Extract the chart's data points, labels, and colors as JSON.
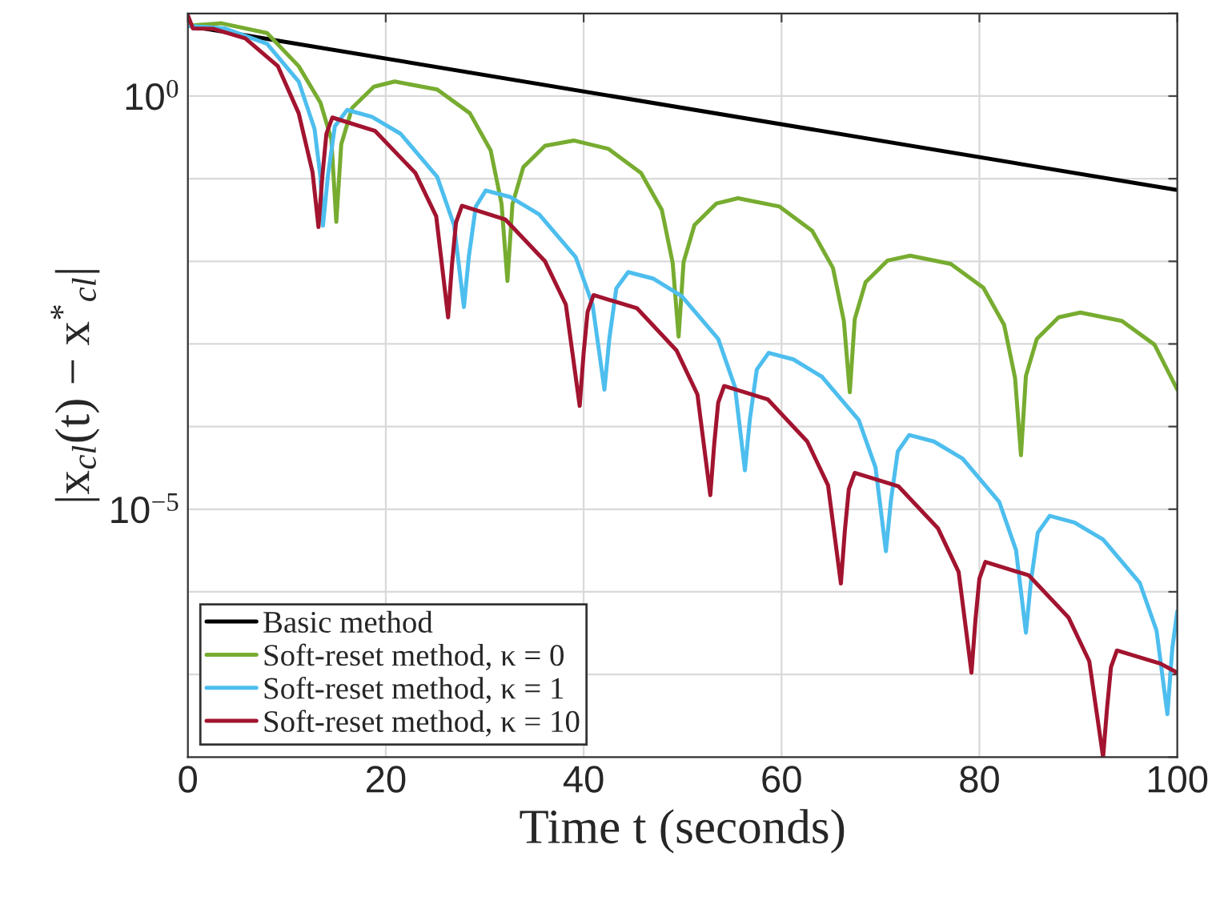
{
  "chart_data": {
    "type": "line",
    "xlabel": "Time t (seconds)",
    "ylabel": "|x$_{cl}$(t) − x$^{*}$$_{cl}$|",
    "xlim": [
      0,
      100
    ],
    "xticks": [
      0,
      20,
      40,
      60,
      80,
      100
    ],
    "ylim": [
      1e-08,
      10
    ],
    "log": true,
    "yticks": [
      {
        "value": 1e-08,
        "label": null
      },
      {
        "value": 1e-07,
        "label": null
      },
      {
        "value": 1e-06,
        "label": null
      },
      {
        "value": 1e-05,
        "label": "10$^{−5}$"
      },
      {
        "value": 0.0001,
        "label": null
      },
      {
        "value": 0.001,
        "label": null
      },
      {
        "value": 0.01,
        "label": null
      },
      {
        "value": 0.1,
        "label": null
      },
      {
        "value": 1,
        "label": "10$^{0}$"
      },
      {
        "value": 10,
        "label": null
      }
    ],
    "grid": true,
    "legend": "bottom left",
    "line_style": "solid",
    "marker": "none",
    "series": [
      {
        "name": "Basic method",
        "color": "#000000",
        "x": [
          0,
          100
        ],
        "values": [
          7.1,
          0.073
        ]
      },
      {
        "name": "Soft-reset method, κ = 0",
        "color": "#77ac30",
        "x": [
          0,
          3.4,
          8.0,
          11.2,
          13.4,
          14.5,
          15.0,
          15.5,
          16.6,
          18.8,
          20.9,
          25.2,
          28.5,
          30.6,
          31.7,
          32.3,
          32.8,
          33.9,
          36.1,
          39.0,
          42.5,
          45.8,
          47.9,
          49.0,
          49.6,
          50.1,
          51.2,
          53.4,
          55.6,
          59.8,
          63.1,
          65.2,
          66.3,
          66.9,
          67.4,
          68.5,
          70.7,
          73.0,
          77.1,
          80.4,
          82.5,
          83.6,
          84.2,
          84.7,
          85.8,
          88.0,
          90.2,
          94.4,
          97.7,
          100
        ],
        "values": [
          7.1,
          7.6,
          5.8,
          2.3,
          0.83,
          0.3,
          0.03,
          0.26,
          0.72,
          1.3,
          1.5,
          1.2,
          0.62,
          0.22,
          0.05,
          0.0058,
          0.049,
          0.138,
          0.25,
          0.29,
          0.23,
          0.117,
          0.042,
          0.0095,
          0.00123,
          0.0098,
          0.0275,
          0.05,
          0.058,
          0.046,
          0.0234,
          0.0083,
          0.0019,
          0.00026,
          0.002,
          0.0056,
          0.0102,
          0.0117,
          0.0093,
          0.0048,
          0.0017,
          0.00039,
          4.5e-05,
          0.00041,
          0.00115,
          0.0021,
          0.0024,
          0.0019,
          0.00098,
          0.00028
        ]
      },
      {
        "name": "Soft-reset method, κ = 1",
        "color": "#4dbeee",
        "x": [
          0,
          3.7,
          8.0,
          11.2,
          12.8,
          13.4,
          13.65,
          14.15,
          14.85,
          16.1,
          18.6,
          21.5,
          25.2,
          26.9,
          27.9,
          28.4,
          29.1,
          30.1,
          32.6,
          35.5,
          39.2,
          40.9,
          42.1,
          42.6,
          43.3,
          44.5,
          47.0,
          49.9,
          53.6,
          55.3,
          56.3,
          56.8,
          57.5,
          58.7,
          61.2,
          64.1,
          67.8,
          69.5,
          70.55,
          71.05,
          71.75,
          72.9,
          75.4,
          78.3,
          82.0,
          83.7,
          84.7,
          85.2,
          85.9,
          87.1,
          89.6,
          92.5,
          96.2,
          97.9,
          99.0,
          99.5,
          100
        ],
        "values": [
          7.1,
          6.6,
          4.3,
          1.5,
          0.4,
          0.105,
          0.027,
          0.107,
          0.43,
          0.68,
          0.56,
          0.35,
          0.105,
          0.0275,
          0.0028,
          0.0115,
          0.046,
          0.072,
          0.06,
          0.037,
          0.0112,
          0.003,
          0.00028,
          0.00117,
          0.0047,
          0.0074,
          0.0062,
          0.0038,
          0.00115,
          0.0003,
          2.95e-05,
          0.000123,
          0.00049,
          0.00078,
          0.00065,
          0.0004,
          0.00012,
          3.2e-05,
          3.1e-06,
          1.26e-05,
          5e-05,
          7.9e-05,
          6.6e-05,
          4.1e-05,
          1.23e-05,
          3.2e-06,
          3.2e-07,
          1.32e-06,
          5.2e-06,
          8.3e-06,
          6.9e-06,
          4.3e-06,
          1.29e-06,
          3.4e-07,
          3.3e-08,
          2.1e-07,
          5.8e-07
        ]
      },
      {
        "name": "Soft-reset method, κ = 10",
        "color": "#a2142f",
        "x": [
          0,
          0.5,
          2.6,
          5.8,
          9.1,
          11.2,
          12.6,
          13.2,
          13.6,
          14.0,
          14.6,
          18.9,
          23.0,
          25.1,
          26.3,
          26.7,
          27.1,
          27.7,
          32.1,
          36.1,
          38.2,
          39.6,
          40.0,
          40.4,
          41.0,
          45.4,
          49.4,
          51.5,
          52.8,
          53.2,
          53.6,
          54.2,
          58.6,
          62.6,
          64.7,
          66.0,
          66.4,
          66.8,
          67.4,
          71.8,
          75.8,
          77.9,
          79.2,
          79.6,
          80.0,
          80.6,
          85.0,
          89.0,
          91.1,
          92.5,
          92.9,
          93.3,
          93.9,
          98.3,
          100
        ],
        "values": [
          9.5,
          6.6,
          6.5,
          5.0,
          2.3,
          0.62,
          0.12,
          0.026,
          0.11,
          0.35,
          0.55,
          0.38,
          0.117,
          0.035,
          0.0021,
          0.0093,
          0.0295,
          0.047,
          0.032,
          0.01,
          0.003,
          0.000178,
          0.00078,
          0.00245,
          0.0039,
          0.0027,
          0.00083,
          0.000245,
          1.48e-05,
          6.2e-05,
          0.000195,
          0.00031,
          0.000214,
          6.6e-05,
          1.95e-05,
          1.26e-06,
          5.5e-06,
          1.74e-05,
          2.75e-05,
          1.9e-05,
          5.9e-06,
          1.74e-06,
          1.05e-07,
          4.6e-07,
          1.45e-06,
          2.3e-06,
          1.58e-06,
          4.9e-07,
          1.45e-07,
          1e-08,
          3.9e-08,
          1.23e-07,
          1.95e-07,
          1.35e-07,
          1.05e-07
        ]
      }
    ]
  }
}
